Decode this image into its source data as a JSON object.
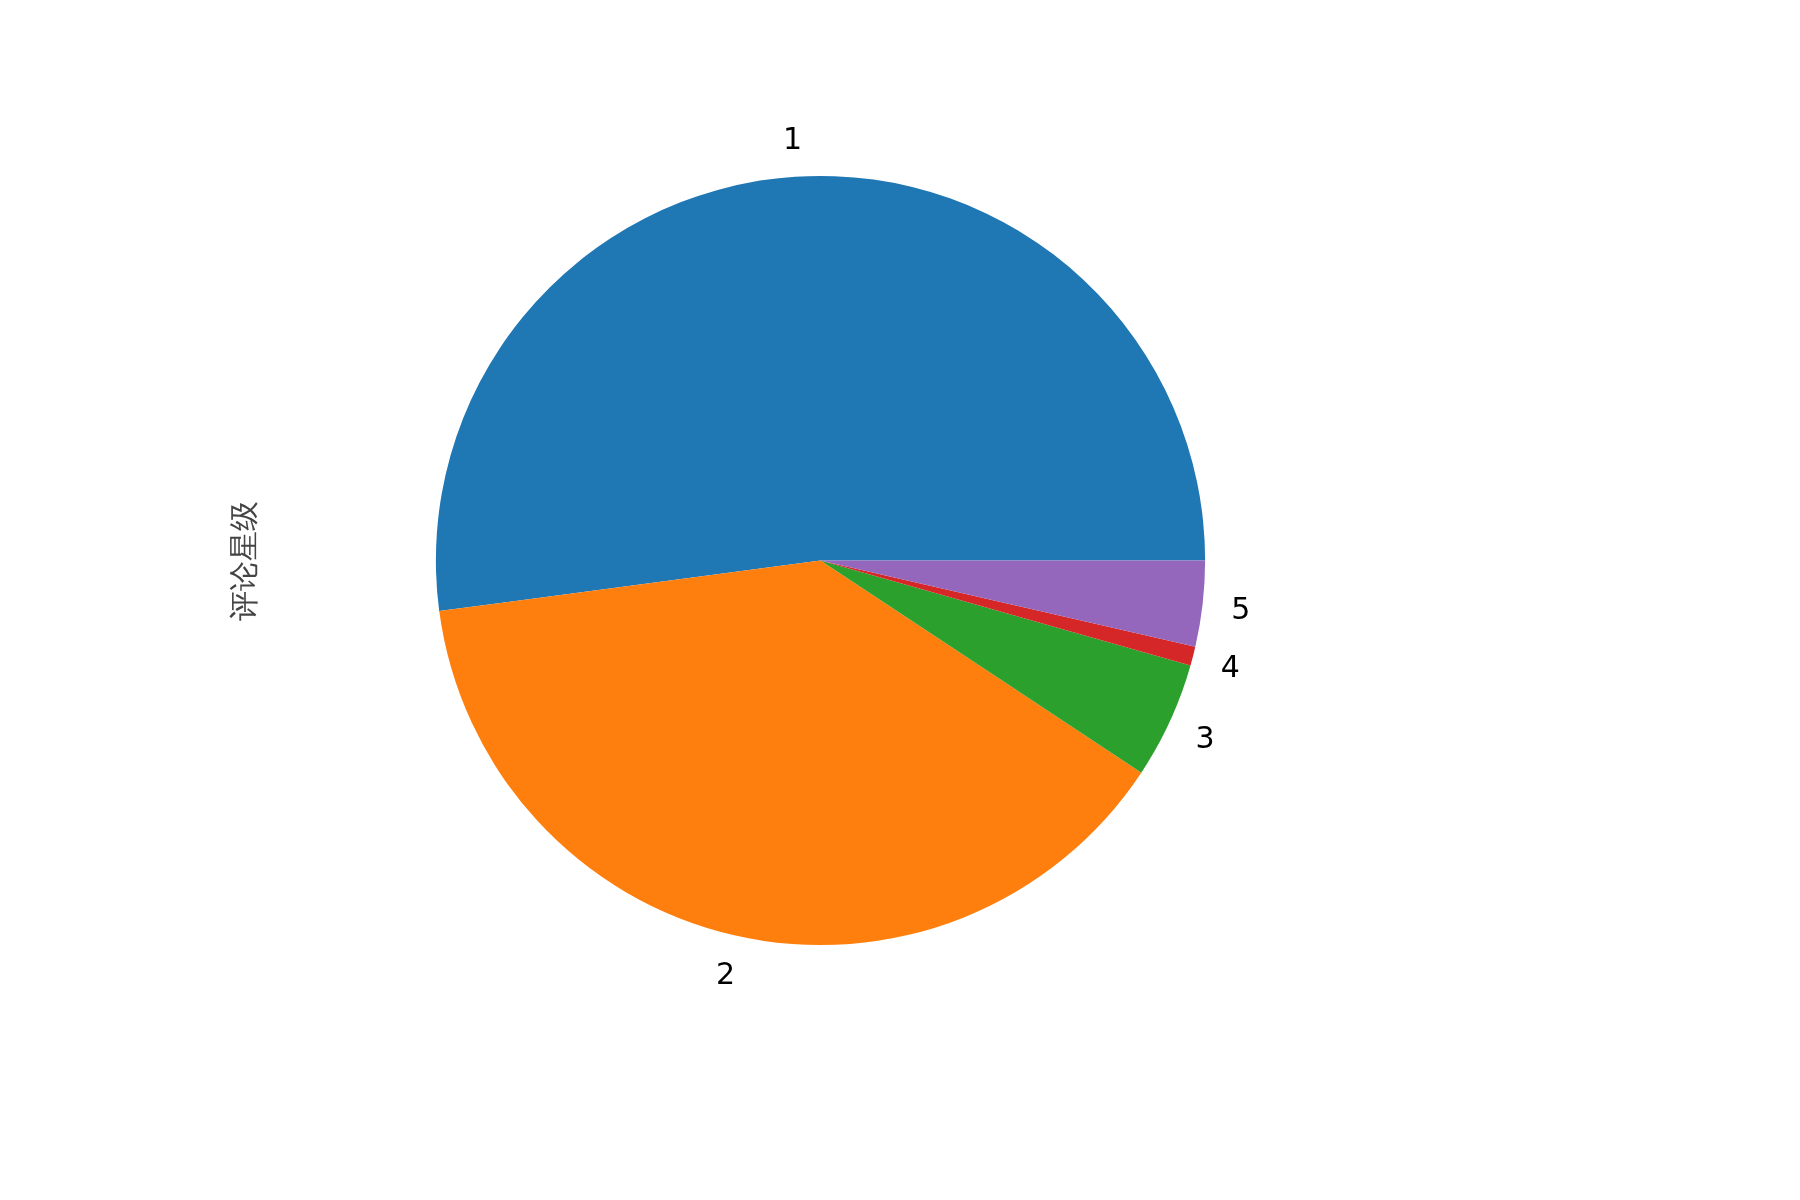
{
  "chart_data": {
    "type": "pie",
    "ylabel": "评论星级",
    "categories": [
      "1",
      "2",
      "3",
      "4",
      "5"
    ],
    "values": [
      52.1,
      38.6,
      4.9,
      0.8,
      3.6
    ],
    "colors": [
      "#1f77b4",
      "#ff7f0e",
      "#2ca02c",
      "#d62728",
      "#9467bd"
    ]
  }
}
